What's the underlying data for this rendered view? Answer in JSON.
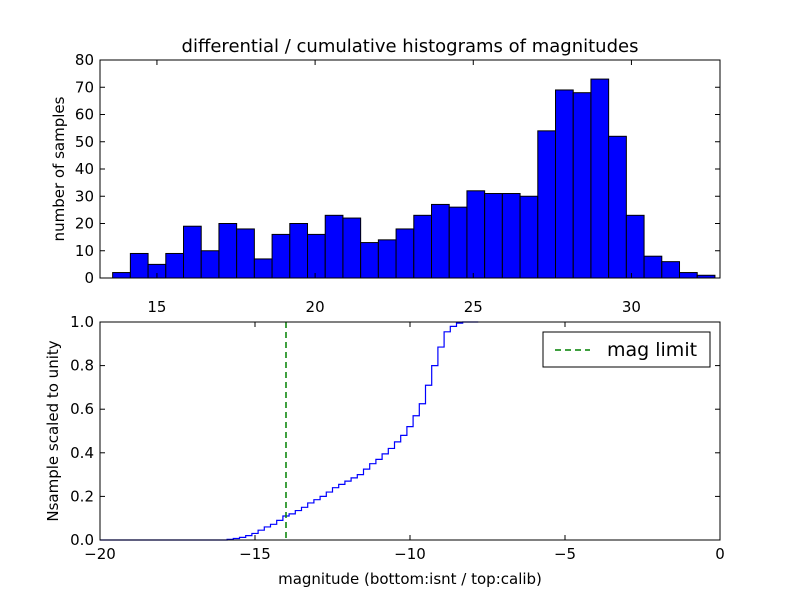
{
  "chart_data": [
    {
      "type": "bar",
      "title": "differential / cumulative histograms of magnitudes",
      "ylabel": "number of samples",
      "xlabel": "",
      "xlim": [
        13.2,
        32.8
      ],
      "ylim": [
        0,
        80
      ],
      "x_ticks": [
        "15",
        "20",
        "25",
        "30"
      ],
      "y_ticks": [
        "0",
        "10",
        "20",
        "30",
        "40",
        "50",
        "60",
        "70",
        "80"
      ],
      "bin_start": 13.6,
      "bin_width": 0.56,
      "values": [
        2,
        9,
        5,
        9,
        19,
        10,
        20,
        18,
        7,
        16,
        20,
        16,
        23,
        22,
        13,
        14,
        18,
        23,
        27,
        26,
        32,
        31,
        31,
        30,
        54,
        69,
        68,
        73,
        52,
        23,
        8,
        6,
        2,
        1
      ],
      "colors": {
        "bar_fill": "#0000ff",
        "bar_edge": "#000000"
      }
    },
    {
      "type": "line",
      "ylabel": "Nsample scaled to unity",
      "xlabel": "magnitude (bottom:isnt / top:calib)",
      "xlim": [
        -20,
        0
      ],
      "ylim": [
        0,
        1
      ],
      "x_ticks": [
        "−20",
        "−15",
        "−10",
        "−5",
        "0"
      ],
      "y_ticks": [
        "0.0",
        "0.2",
        "0.4",
        "0.6",
        "0.8",
        "1.0"
      ],
      "series": [
        {
          "name": "cumulative",
          "step": true,
          "color": "#0000ff",
          "x": [
            -20,
            -15.9,
            -15.7,
            -15.5,
            -15.3,
            -15.1,
            -14.9,
            -14.7,
            -14.5,
            -14.3,
            -14.1,
            -13.9,
            -13.7,
            -13.5,
            -13.3,
            -13.1,
            -12.9,
            -12.7,
            -12.5,
            -12.3,
            -12.1,
            -11.9,
            -11.7,
            -11.5,
            -11.3,
            -11.1,
            -10.9,
            -10.7,
            -10.5,
            -10.3,
            -10.1,
            -9.9,
            -9.7,
            -9.5,
            -9.3,
            -9.1,
            -8.9,
            -8.7,
            -8.5,
            -8.3,
            -8.1,
            -7.9,
            -7.8
          ],
          "y": [
            0.0,
            0.003,
            0.007,
            0.012,
            0.02,
            0.03,
            0.045,
            0.06,
            0.072,
            0.09,
            0.11,
            0.12,
            0.135,
            0.15,
            0.17,
            0.185,
            0.2,
            0.22,
            0.24,
            0.255,
            0.27,
            0.285,
            0.3,
            0.325,
            0.35,
            0.37,
            0.395,
            0.42,
            0.45,
            0.48,
            0.52,
            0.57,
            0.625,
            0.71,
            0.8,
            0.885,
            0.955,
            0.98,
            0.995,
            1.0,
            1.0,
            1.0,
            1.0
          ]
        },
        {
          "name": "mag limit",
          "style": "dashed",
          "color": "#008000",
          "x_value": -14
        }
      ],
      "legend": {
        "entries": [
          "mag limit"
        ],
        "position": "upper right"
      }
    }
  ]
}
